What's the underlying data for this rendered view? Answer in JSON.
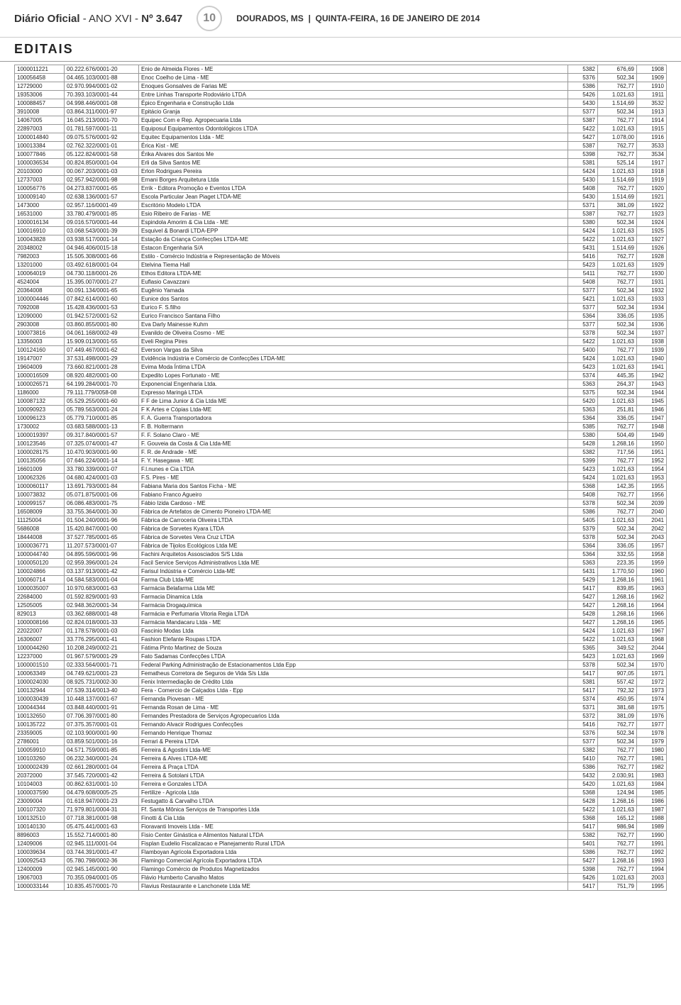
{
  "header": {
    "journal": "Diário Oficial",
    "year": "- ANO XVI -",
    "issue": "Nº 3.647",
    "page": "10",
    "city": "DOURADOS, MS",
    "date": "QUINTA-FEIRA, 16 DE JANEIRO DE 2014"
  },
  "section": "EDITAIS",
  "rows": [
    [
      "1000011221",
      "00.222.676/0001-20",
      "Enio de Almeida Flores - ME",
      "5382",
      "676,69",
      "1908"
    ],
    [
      "100056458",
      "04.465.103/0001-88",
      "Enoc Coelho de Lima - ME",
      "5376",
      "502,34",
      "1909"
    ],
    [
      "12729000",
      "02.970.994/0001-02",
      "Enoques Gonsalves de Farias ME",
      "5386",
      "762,77",
      "1910"
    ],
    [
      "19353006",
      "70.393.103/0001-44",
      "Entre Linhas Transporte Rodoviário LTDA",
      "5426",
      "1.021,63",
      "1911"
    ],
    [
      "100088457",
      "04.998.446/0001-08",
      "Épico Engenharia e Construção Ltda",
      "5430",
      "1.514,69",
      "3532"
    ],
    [
      "3910008",
      "03.864.311/0001-97",
      "Epitácio Granja",
      "5377",
      "502,34",
      "1913"
    ],
    [
      "14067005",
      "16.045.213/0001-70",
      "Equipec Com e Rep. Agropecuaria Ltda",
      "5387",
      "762,77",
      "1914"
    ],
    [
      "22897003",
      "01.781.597/0001-11",
      "Equiposul Equipamentos Odontológicos LTDA",
      "5422",
      "1.021,63",
      "1915"
    ],
    [
      "1000014840",
      "09.075.576/0001-92",
      "Equitec Equipamentos Ltda - ME",
      "5427",
      "1.078,00",
      "1916"
    ],
    [
      "100013384",
      "02.762.322/0001-01",
      "Érica Kist - ME",
      "5387",
      "762,77",
      "3533"
    ],
    [
      "100077846",
      "05.122.824/0001-58",
      "Érika Alvares dos Santos Me",
      "5398",
      "762,77",
      "3534"
    ],
    [
      "1000036534",
      "00.824.850/0001-04",
      "Erli da Silva Santos ME",
      "5381",
      "525,14",
      "1917"
    ],
    [
      "20103000",
      "00.067.203/0001-03",
      "Erlon Rodrigues Pereira",
      "5424",
      "1.021,63",
      "1918"
    ],
    [
      "12737003",
      "02.957.942/0001-98",
      "Ernani Borges Arquitetura Ltda",
      "5430",
      "1.514,69",
      "1919"
    ],
    [
      "100056776",
      "04.273.837/0001-65",
      "Errik - Editora Promoção e Eventos LTDA",
      "5408",
      "762,77",
      "1920"
    ],
    [
      "100009140",
      "02.638.136/0001-57",
      "Escola Particular Jean Piaget LTDA-ME",
      "5430",
      "1.514,69",
      "1921"
    ],
    [
      "1473000",
      "02.957.116/0001-49",
      "Escritório Modelo LTDA",
      "5371",
      "381,09",
      "1922"
    ],
    [
      "16531000",
      "33.780.479/0001-85",
      "Esio Ribeiro de Farias - ME",
      "5387",
      "762,77",
      "1923"
    ],
    [
      "1000016134",
      "09.016.570/0001-44",
      "Espindola Amorim & Cia Ltda - ME",
      "5380",
      "502,34",
      "1924"
    ],
    [
      "100016910",
      "03.068.543/0001-39",
      "Esquivel & Bonardi LTDA-EPP",
      "5424",
      "1.021,63",
      "1925"
    ],
    [
      "100043828",
      "03.938.517/0001-14",
      "Estação da Criança Confecções LTDA-ME",
      "5422",
      "1.021,63",
      "1927"
    ],
    [
      "20348002",
      "04.946.406/0015-18",
      "Estacon Engenharia S/A",
      "5431",
      "1.514,69",
      "1926"
    ],
    [
      "7982003",
      "15.505.308/0001-66",
      "Estilo - Comércio Indústria e Representação de Móveis",
      "5416",
      "762,77",
      "1928"
    ],
    [
      "13201000",
      "03.492.618/0001-04",
      "Etelvina Tiema Hall",
      "5423",
      "1.021,63",
      "1929"
    ],
    [
      "100064019",
      "04.730.118/0001-26",
      "Ethos Editora LTDA-ME",
      "5411",
      "762,77",
      "1930"
    ],
    [
      "4524004",
      "15.395.007/0001-27",
      "Euflasio Cavazzani",
      "5408",
      "762,77",
      "1931"
    ],
    [
      "20364008",
      "00.091.134/0001-65",
      "Eugênio Yamada",
      "5377",
      "502,34",
      "1932"
    ],
    [
      "1000004446",
      "07.842.614/0001-60",
      "Eunice dos Santos",
      "5421",
      "1.021,63",
      "1933"
    ],
    [
      "7092008",
      "15.428.436/0001-53",
      "Eurico F. S.filho",
      "5377",
      "502,34",
      "1934"
    ],
    [
      "12090000",
      "01.942.572/0001-52",
      "Eurico Francisco Santana Filho",
      "5364",
      "336,05",
      "1935"
    ],
    [
      "2903008",
      "03.860.855/0001-80",
      "Eva Darly Mainesse Kuhm",
      "5377",
      "502,34",
      "1936"
    ],
    [
      "100073816",
      "04.061.168/0002-49",
      "Evanildo de Oliveira Cosmo - ME",
      "5378",
      "502,34",
      "1937"
    ],
    [
      "13356003",
      "15.909.013/0001-55",
      "Eveli Regina Pires",
      "5422",
      "1.021,63",
      "1938"
    ],
    [
      "100124160",
      "07.449.467/0001-62",
      "Everson Vargas da Silva",
      "5400",
      "762,77",
      "1939"
    ],
    [
      "19147007",
      "37.531.498/0001-29",
      "Evidência Indústria e Comércio de Confecções LTDA-ME",
      "5424",
      "1.021,63",
      "1940"
    ],
    [
      "19604009",
      "73.660.821/0001-28",
      "Evima Moda Íntima LTDA",
      "5423",
      "1.021,63",
      "1941"
    ],
    [
      "1000016509",
      "08.920.482/0001-00",
      "Expedito Lopes Fortunato - ME",
      "5374",
      "445,35",
      "1942"
    ],
    [
      "1000026571",
      "64.199.284/0001-70",
      "Exponencial Engenharia Ltda.",
      "5363",
      "264,37",
      "1943"
    ],
    [
      "1186000",
      "79.111.779/0058-08",
      "Expresso Maringá LTDA",
      "5375",
      "502,34",
      "1944"
    ],
    [
      "100087132",
      "05.529.255/0001-60",
      "F F de Lima Junior & Cia Ltda ME",
      "5420",
      "1.021,63",
      "1945"
    ],
    [
      "100090923",
      "05.789.563/0001-24",
      "F K Artes e Cópias Ltda-ME",
      "5363",
      "251,81",
      "1946"
    ],
    [
      "100096123",
      "05.779.710/0001-85",
      "F. A. Guerra Transportadora",
      "5364",
      "336,05",
      "1947"
    ],
    [
      "1730002",
      "03.683.588/0001-13",
      "F. B. Holtermann",
      "5385",
      "762,77",
      "1948"
    ],
    [
      "1000019397",
      "09.317.840/0001-57",
      "F. F. Solano Claro - ME",
      "5380",
      "504,49",
      "1949"
    ],
    [
      "100123546",
      "07.325.074/0001-47",
      "F. Gouveia da Costa & Cia Ltda-ME",
      "5428",
      "1.268,16",
      "1950"
    ],
    [
      "1000028175",
      "10.470.903/0001-90",
      "F. R. de Andrade - ME",
      "5382",
      "717,56",
      "1951"
    ],
    [
      "100135056",
      "07.646.224/0001-14",
      "F. Y. Hasegawa - ME",
      "5399",
      "762,77",
      "1952"
    ],
    [
      "16601009",
      "33.780.339/0001-07",
      "F.l.nunes e Cia LTDA",
      "5423",
      "1.021,63",
      "1954"
    ],
    [
      "100062326",
      "04.680.424/0001-03",
      "F.S. Pires - ME",
      "5424",
      "1.021,63",
      "1953"
    ],
    [
      "1000060117",
      "13.691.793/0001-84",
      "Fabiana Maria dos Santos Ficha - ME",
      "5368",
      "142,35",
      "1955"
    ],
    [
      "100073832",
      "05.071.875/0001-06",
      "Fabiano Franco Agueiro",
      "5408",
      "762,77",
      "1956"
    ],
    [
      "100099157",
      "06.086.483/0001-75",
      "Fábio Izida Cardoso - ME",
      "5378",
      "502,34",
      "2039"
    ],
    [
      "16508009",
      "33.755.364/0001-30",
      "Fábrica de Artefatos de Cimento Pioneiro LTDA-ME",
      "5386",
      "762,77",
      "2040"
    ],
    [
      "11125004",
      "01.504.240/0001-96",
      "Fábrica de Carroceria Oliveira LTDA",
      "5405",
      "1.021,63",
      "2041"
    ],
    [
      "5686008",
      "15.420.847/0001-00",
      "Fábrica de Sorvetes Kyara LTDA",
      "5379",
      "502,34",
      "2042"
    ],
    [
      "18444008",
      "37.527.785/0001-65",
      "Fábrica de Sorvetes Vera Cruz LTDA",
      "5378",
      "502,34",
      "2043"
    ],
    [
      "1000036771",
      "11.207.573/0001-07",
      "Fábrica de Tijolos Ecológicos Ltda ME",
      "5364",
      "336,05",
      "1957"
    ],
    [
      "1000044740",
      "04.895.596/0001-96",
      "Fachini Arquitetos Assosciados S/S Ltda",
      "5364",
      "332,55",
      "1958"
    ],
    [
      "1000050120",
      "02.959.396/0001-24",
      "Facil Service Serviços Administrativos Ltda ME",
      "5363",
      "223,35",
      "1959"
    ],
    [
      "100024866",
      "03.137.913/0001-42",
      "Farisul Indústria e Comércio Ltda-ME",
      "5431",
      "1.770,50",
      "1960"
    ],
    [
      "100060714",
      "04.584.583/0001-04",
      "Farma Club Ltda-ME",
      "5429",
      "1.268,16",
      "1961"
    ],
    [
      "1000035007",
      "10.970.683/0001-63",
      "Farmácia Belafarma Ltda ME",
      "5417",
      "839,85",
      "1963"
    ],
    [
      "22684000",
      "01.592.829/0001-93",
      "Farmacia Dinamica Ltda",
      "5427",
      "1.268,16",
      "1962"
    ],
    [
      "12505005",
      "02.948.362/0001-34",
      "Farmácia Drogaquímica",
      "5427",
      "1.268,16",
      "1964"
    ],
    [
      "829013",
      "03.362.688/0001-48",
      "Farmácia e Perfumaria Vitoria Regia LTDA",
      "5428",
      "1.268,16",
      "1966"
    ],
    [
      "1000008166",
      "02.824.018/0001-33",
      "Farmácia Mandacaru Ltda - ME",
      "5427",
      "1.268,16",
      "1965"
    ],
    [
      "22022007",
      "01.178.578/0001-03",
      "Fascinio Modas Ltda",
      "5424",
      "1.021,63",
      "1967"
    ],
    [
      "16306007",
      "33.776.295/0001-41",
      "Fashion Elefante Roupas LTDA",
      "5422",
      "1.021,63",
      "1968"
    ],
    [
      "1000044260",
      "10.208.249/0002-21",
      "Fátima Pinto Martinez de Souza",
      "5365",
      "349,52",
      "2044"
    ],
    [
      "12237000",
      "01.967.579/0001-29",
      "Fato Sadamas Confecções LTDA",
      "5423",
      "1.021,63",
      "1969"
    ],
    [
      "1000001510",
      "02.333.564/0001-71",
      "Federal Parking Administração de Estacionamentos Ltda Epp",
      "5378",
      "502,34",
      "1970"
    ],
    [
      "100063349",
      "04.749.621/0001-23",
      "Fematheus Corretora de Seguros de Vida S/s Ltda",
      "5417",
      "907,05",
      "1971"
    ],
    [
      "1000024030",
      "08.925.731/0002-30",
      "Fenix Intermediação de Crédito Ltda",
      "5381",
      "557,42",
      "1972"
    ],
    [
      "100132944",
      "07.539.314/0013-40",
      "Fera - Comercio de Calçados Ltda - Epp",
      "5417",
      "792,32",
      "1973"
    ],
    [
      "1000030439",
      "10.448.137/0001-67",
      "Fernanda Piovesan - ME",
      "5374",
      "450,95",
      "1974"
    ],
    [
      "100044344",
      "03.848.440/0001-91",
      "Fernanda Rosan de Lima - ME",
      "5371",
      "381,68",
      "1975"
    ],
    [
      "100132650",
      "07.706.397/0001-80",
      "Fernandes Prestadora de Serviços Agropecuarios Ltda",
      "5372",
      "381,09",
      "1976"
    ],
    [
      "100135722",
      "07.375.357/0001-01",
      "Fernando Alvacir Rodrigues Confecções",
      "5416",
      "762,77",
      "1977"
    ],
    [
      "23359005",
      "02.103.900/0001-90",
      "Fernando Henrique Thomaz",
      "5376",
      "502,34",
      "1978"
    ],
    [
      "2786001",
      "03.859.501/0001-16",
      "Ferrari & Pereira LTDA",
      "5377",
      "502,34",
      "1979"
    ],
    [
      "100059910",
      "04.571.759/0001-85",
      "Ferreira & Agostini Ltda-ME",
      "5382",
      "762,77",
      "1980"
    ],
    [
      "100103260",
      "06.232.340/0001-24",
      "Ferreira & Alves LTDA-ME",
      "5410",
      "762,77",
      "1981"
    ],
    [
      "1000002439",
      "02.661.280/0001-04",
      "Ferreira & Praça LTDA",
      "5386",
      "762,77",
      "1982"
    ],
    [
      "20372000",
      "37.545.720/0001-42",
      "Ferreira & Sotolani LTDA",
      "5432",
      "2.030,91",
      "1983"
    ],
    [
      "10104003",
      "00.862.631/0001-10",
      "Ferreira e Gonzales LTDA",
      "5420",
      "1.021,63",
      "1984"
    ],
    [
      "1000037590",
      "04.479.608/0005-25",
      "Fertilize - Agricola Ltda",
      "5368",
      "124,94",
      "1985"
    ],
    [
      "23009004",
      "01.618.947/0001-23",
      "Festugatto & Carvalho LTDA",
      "5428",
      "1.268,16",
      "1986"
    ],
    [
      "100107320",
      "71.979.801/0004-31",
      "Ff. Santa Mônica Serviços de Transportes Ltda",
      "5422",
      "1.021,63",
      "1987"
    ],
    [
      "100132510",
      "07.718.381/0001-98",
      "Finotti & Cia Ltda",
      "5368",
      "165,12",
      "1988"
    ],
    [
      "100140130",
      "05.475.441/0001-63",
      "Fioravanti Imoveis Ltda - ME",
      "5417",
      "986,94",
      "1989"
    ],
    [
      "8896003",
      "15.552.714/0001-80",
      "Fisio Center Ginástica e Alimentos Natural LTDA",
      "5382",
      "762,77",
      "1990"
    ],
    [
      "12409006",
      "02.945.111/0001-04",
      "Fisplan Eudelio Fiscalizacao e Planejamento Rural LTDA",
      "5401",
      "762,77",
      "1991"
    ],
    [
      "100039634",
      "03.744.391/0001-47",
      "Flamboyan Agrícola Exportadora Ltda",
      "5386",
      "762,77",
      "1992"
    ],
    [
      "100092543",
      "05.780.798/0002-36",
      "Flamingo Comercial Agrícola Exportadora LTDA",
      "5427",
      "1.268,16",
      "1993"
    ],
    [
      "12400009",
      "02.945.145/0001-90",
      "Flamingo Comércio de Produtos Magnetizados",
      "5398",
      "762,77",
      "1994"
    ],
    [
      "19067003",
      "70.355.094/0001-05",
      "Flávio Humberto Carvalho Matos",
      "5426",
      "1.021,63",
      "2003"
    ],
    [
      "1000033144",
      "10.835.457/0001-70",
      "Flavius Restaurante e Lanchonete Ltda ME",
      "5417",
      "751,79",
      "1995"
    ]
  ]
}
